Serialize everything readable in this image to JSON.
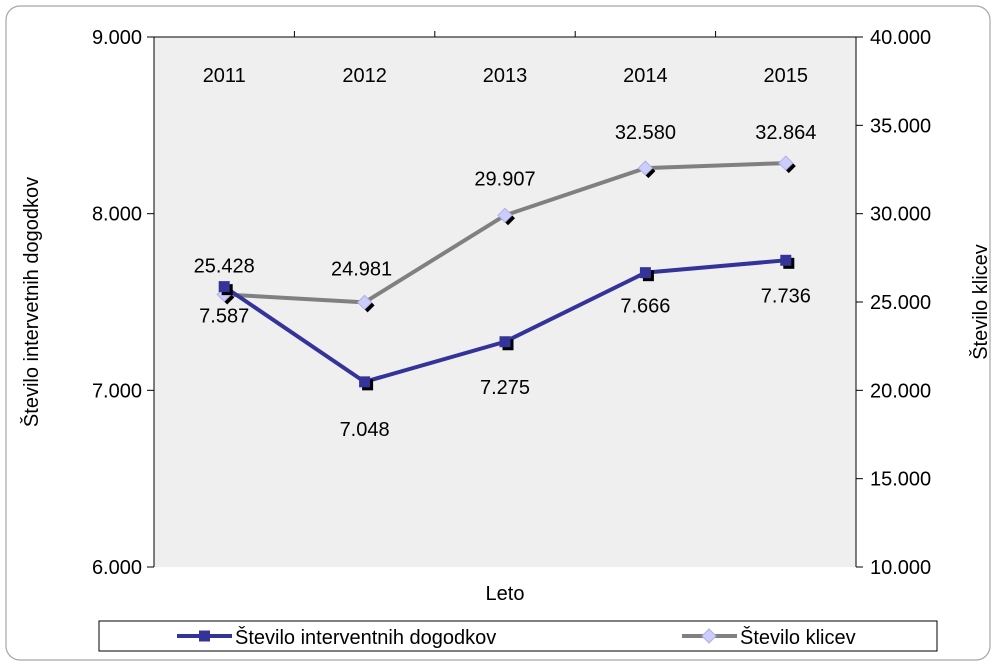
{
  "chart_data": {
    "type": "line",
    "xlabel": "Leto",
    "categories": [
      "2011",
      "2012",
      "2013",
      "2014",
      "2015"
    ],
    "y_left": {
      "label": "Število intervetnih dogodkov",
      "ylim": [
        6000,
        9000
      ],
      "ticks": [
        "6.000",
        "7.000",
        "8.000",
        "9.000"
      ],
      "tick_values": [
        6000,
        7000,
        8000,
        9000
      ]
    },
    "y_right": {
      "label": "Število klicev",
      "ylim": [
        10000,
        40000
      ],
      "ticks": [
        "10.000",
        "15.000",
        "20.000",
        "25.000",
        "30.000",
        "35.000",
        "40.000"
      ],
      "tick_values": [
        10000,
        15000,
        20000,
        25000,
        30000,
        35000,
        40000
      ]
    },
    "series": [
      {
        "name": "Število interventnih dogodkov",
        "axis": "left",
        "values": [
          7587,
          7048,
          7275,
          7666,
          7736
        ],
        "labels": [
          "7.587",
          "7.048",
          "7.275",
          "7.666",
          "7.736"
        ],
        "color": "#333399",
        "marker": "square"
      },
      {
        "name": "Število klicev",
        "axis": "right",
        "values": [
          25428,
          24981,
          29907,
          32580,
          32864
        ],
        "labels": [
          "25.428",
          "24.981",
          "29.907",
          "32.580",
          "32.864"
        ],
        "color": "#808080",
        "marker": "diamond"
      }
    ],
    "grid": false,
    "legend": "bottom"
  }
}
